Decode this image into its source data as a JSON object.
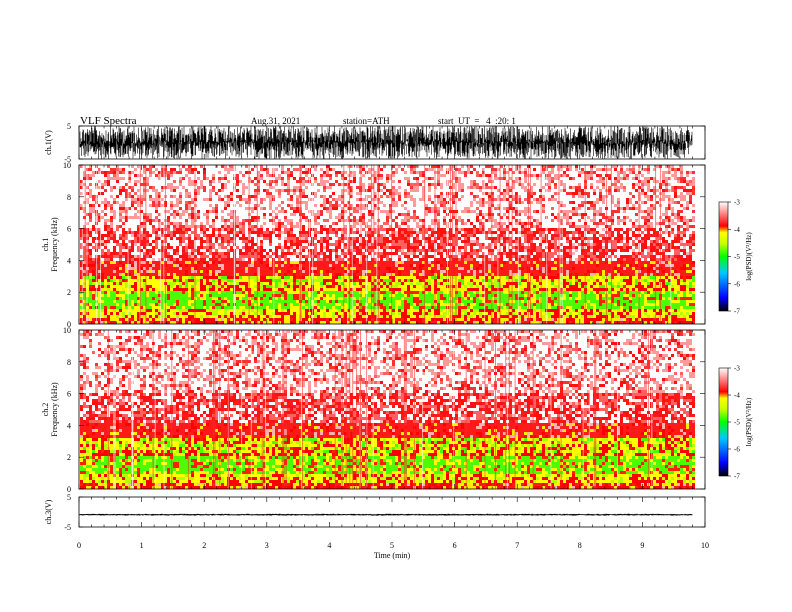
{
  "header": {
    "title": "VLF  Spectra",
    "date": "Aug.31, 2021",
    "station": "station=ATH",
    "start": "start  UT  =   4  :20: 1"
  },
  "chart_data": [
    {
      "type": "line",
      "panel": "ch1-waveform",
      "ylabel": "ch.1(V)",
      "ylim": [
        -5,
        5
      ],
      "yticks": [
        "5",
        "-5"
      ],
      "xlim": [
        0,
        10
      ],
      "signal": {
        "amplitude_range": [
          -5,
          5
        ],
        "style": "dense-noise",
        "end_time": 9.8
      }
    },
    {
      "type": "heatmap",
      "panel": "ch1-spectrogram",
      "ylabel_line1": "ch.1",
      "ylabel_line2": "Frequency  (kHz)",
      "ylim": [
        0,
        10
      ],
      "yticks": [
        "0",
        "2",
        "4",
        "6",
        "8",
        "10"
      ],
      "xlim": [
        0,
        10
      ],
      "end_time": 9.8,
      "bands_khz": [
        {
          "from": 0,
          "to": 0.35,
          "level": -4.0
        },
        {
          "from": 0.35,
          "to": 1.0,
          "level": -4.4
        },
        {
          "from": 1.0,
          "to": 2.0,
          "level": -4.8
        },
        {
          "from": 2.0,
          "to": 2.3,
          "level": -4.1
        },
        {
          "from": 2.3,
          "to": 3.0,
          "level": -4.5
        },
        {
          "from": 3.0,
          "to": 4.0,
          "level": -3.8
        },
        {
          "from": 4.0,
          "to": 6.0,
          "level": -3.5
        },
        {
          "from": 6.0,
          "to": 10.0,
          "level": -3.2
        }
      ],
      "colorbar": {
        "label": "log(PSD)(V²/Hz)",
        "ticks": [
          "-3",
          "-4",
          "-5",
          "-6",
          "-7"
        ],
        "range": [
          -7,
          -3
        ]
      }
    },
    {
      "type": "heatmap",
      "panel": "ch2-spectrogram",
      "ylabel_line1": "ch.2",
      "ylabel_line2": "Frequency  (kHz)",
      "ylim": [
        0,
        10
      ],
      "yticks": [
        "0",
        "2",
        "4",
        "6",
        "8",
        "10"
      ],
      "xlim": [
        0,
        10
      ],
      "end_time": 9.8,
      "bands_khz": [
        {
          "from": 0,
          "to": 0.35,
          "level": -4.0
        },
        {
          "from": 0.35,
          "to": 1.0,
          "level": -4.4
        },
        {
          "from": 1.0,
          "to": 2.0,
          "level": -4.8
        },
        {
          "from": 2.0,
          "to": 2.3,
          "level": -4.1
        },
        {
          "from": 2.3,
          "to": 3.2,
          "level": -4.5
        },
        {
          "from": 3.2,
          "to": 4.2,
          "level": -3.8
        },
        {
          "from": 4.2,
          "to": 6.0,
          "level": -3.5
        },
        {
          "from": 6.0,
          "to": 10.0,
          "level": -3.2
        }
      ],
      "colorbar": {
        "label": "log(PSD)(V²/Hz)",
        "ticks": [
          "-3",
          "-4",
          "-5",
          "-6",
          "-7"
        ],
        "range": [
          -7,
          -3
        ]
      }
    },
    {
      "type": "line",
      "panel": "ch3-waveform",
      "ylabel": "ch.3(V)",
      "ylim": [
        -5,
        5
      ],
      "yticks": [
        "5",
        "-5"
      ],
      "xlim": [
        0,
        10
      ],
      "signal": {
        "amplitude_range": [
          -1.2,
          -0.6
        ],
        "style": "flat-noise",
        "end_time": 9.8
      }
    }
  ],
  "xaxis": {
    "label": "Time  (min)",
    "ticks": [
      "0",
      "1",
      "2",
      "3",
      "4",
      "5",
      "6",
      "7",
      "8",
      "9",
      "10"
    ]
  },
  "colors": {
    "axis": "#000000",
    "colormap": [
      "#000000",
      "#0000ff",
      "#00c8ff",
      "#00ff00",
      "#c8ff00",
      "#ffff00",
      "#ff0000",
      "#ffffff"
    ]
  }
}
